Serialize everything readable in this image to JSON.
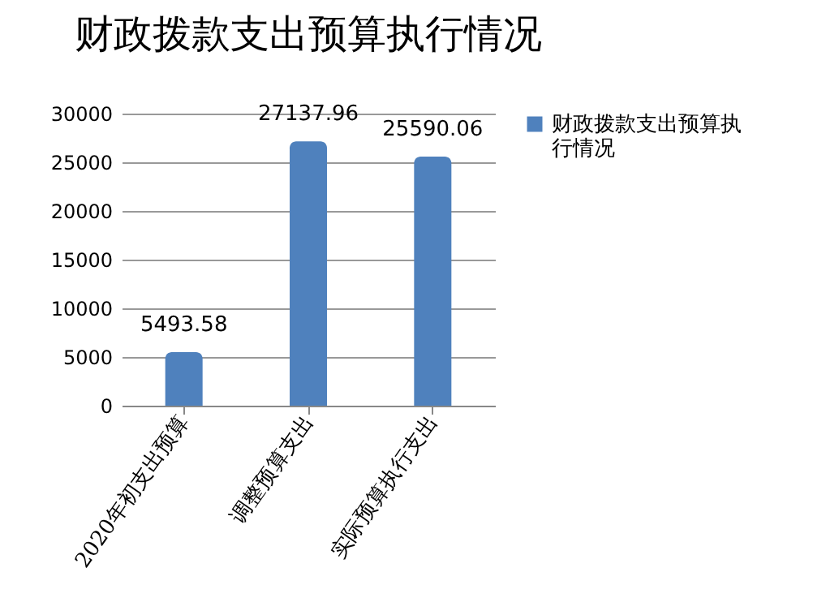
{
  "chart_data": {
    "type": "bar",
    "title": "财政拨款支出预算执行情况",
    "categories": [
      "2020年初支出预算",
      "调整预算支出",
      "实际预算执行支出"
    ],
    "series": [
      {
        "name": "财政拨款支出预算执行情况",
        "color": "#4f81bd",
        "values": [
          5493.58,
          27137.96,
          25590.06
        ]
      }
    ],
    "ylim": [
      0,
      30000
    ],
    "yticks": [
      0,
      5000,
      10000,
      15000,
      20000,
      25000,
      30000
    ],
    "grid": "y",
    "legend": "right",
    "data_labels": true
  }
}
